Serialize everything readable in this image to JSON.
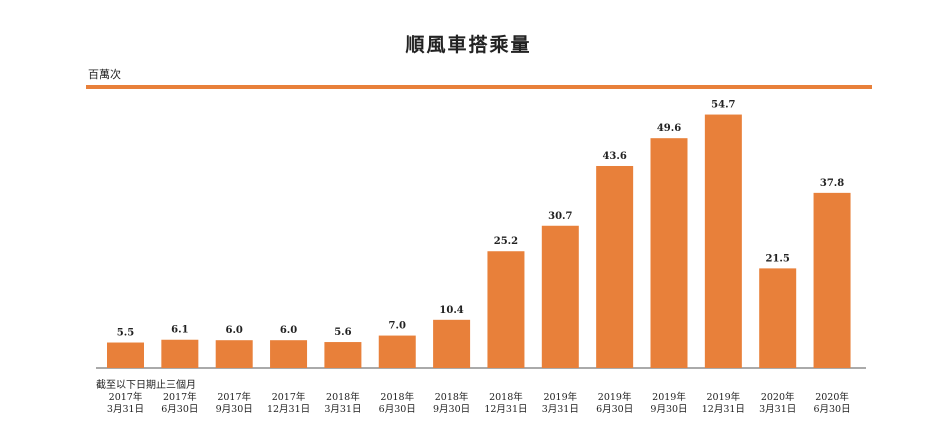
{
  "chart_data": {
    "type": "bar",
    "title": "順風車搭乘量",
    "ylabel": "百萬次",
    "xlabel": "",
    "note": "截至以下日期止三個月",
    "categories": [
      [
        "2017年",
        "3月31日"
      ],
      [
        "2017年",
        "6月30日"
      ],
      [
        "2017年",
        "9月30日"
      ],
      [
        "2017年",
        "12月31日"
      ],
      [
        "2018年",
        "3月31日"
      ],
      [
        "2018年",
        "6月30日"
      ],
      [
        "2018年",
        "9月30日"
      ],
      [
        "2018年",
        "12月31日"
      ],
      [
        "2019年",
        "3月31日"
      ],
      [
        "2019年",
        "6月30日"
      ],
      [
        "2019年",
        "9月30日"
      ],
      [
        "2019年",
        "12月31日"
      ],
      [
        "2020年",
        "3月31日"
      ],
      [
        "2020年",
        "6月30日"
      ]
    ],
    "values": [
      5.5,
      6.1,
      6.0,
      6.0,
      5.6,
      7.0,
      10.4,
      25.2,
      30.7,
      43.6,
      49.6,
      54.7,
      21.5,
      37.8
    ],
    "value_labels": [
      "5.5",
      "6.1",
      "6.0",
      "6.0",
      "5.6",
      "7.0",
      "10.4",
      "25.2",
      "30.7",
      "43.6",
      "49.6",
      "54.7",
      "21.5",
      "37.8"
    ],
    "ylim": [
      0,
      60
    ],
    "grid": false,
    "legend": "none",
    "colors": {
      "bar": "#E8803A",
      "accent_rule": "#E8803A",
      "baseline": "#555555",
      "text": "#222222"
    }
  }
}
